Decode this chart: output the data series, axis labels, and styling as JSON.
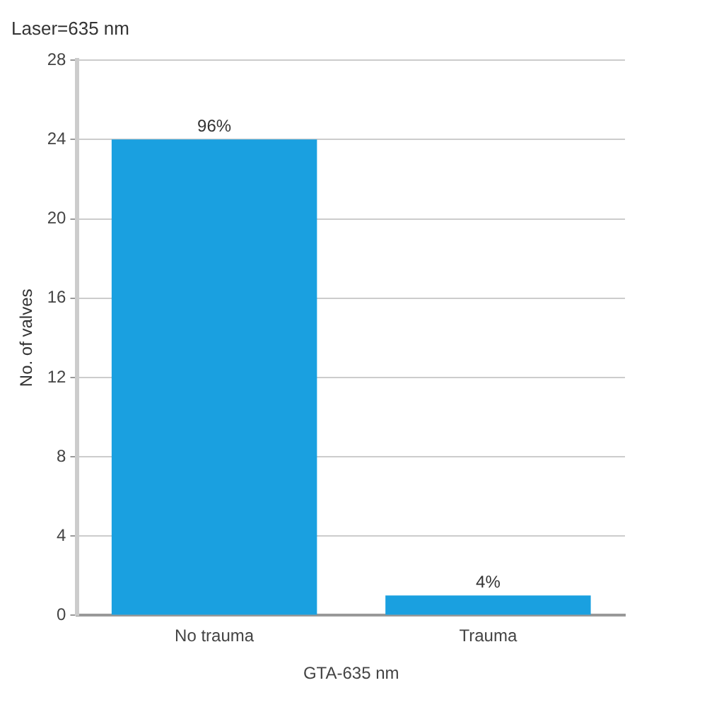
{
  "chart_data": {
    "type": "bar",
    "title": "Laser=635 nm",
    "xlabel": "GTA-635 nm",
    "ylabel": "No. of valves",
    "categories": [
      "No trauma",
      "Trauma"
    ],
    "values": [
      24,
      1
    ],
    "color": "#1aa0e0",
    "annotations": [
      {
        "text": "96%",
        "x": "No trauma",
        "y": 24
      },
      {
        "text": "4%",
        "x": "Trauma",
        "y": 1
      }
    ],
    "ylim": [
      0,
      28
    ],
    "yticks": [
      0,
      4,
      8,
      12,
      16,
      20,
      24,
      28
    ],
    "grid": "y",
    "legend": false
  }
}
